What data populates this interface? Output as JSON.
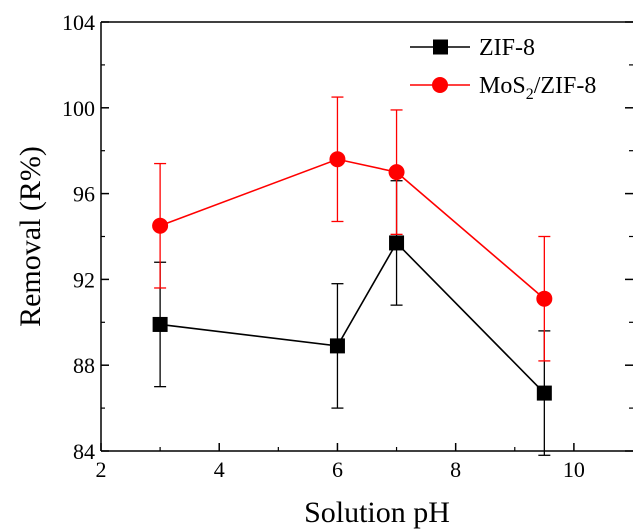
{
  "chart_data": {
    "type": "line",
    "xlabel": "Solution pH",
    "ylabel": "Removal (R%)",
    "xlim": [
      2,
      11
    ],
    "ylim": [
      84,
      104
    ],
    "xticks": [
      2,
      4,
      6,
      8,
      10
    ],
    "yticks": [
      84,
      88,
      92,
      96,
      100,
      104
    ],
    "legend_position": "top-right",
    "grid": false,
    "series": [
      {
        "name": "ZIF-8",
        "color": "#000000",
        "marker": "square",
        "x": [
          3,
          6,
          7,
          9.5
        ],
        "y": [
          89.9,
          88.9,
          93.7,
          86.7
        ],
        "error": [
          2.9,
          2.9,
          2.9,
          2.9
        ]
      },
      {
        "name": "MoS2/ZIF-8",
        "legend_parts": [
          "MoS",
          "2",
          "/ZIF-8"
        ],
        "color": "#ff0000",
        "marker": "circle",
        "x": [
          3,
          6,
          7,
          9.5
        ],
        "y": [
          94.5,
          97.6,
          97.0,
          91.1
        ],
        "error": [
          2.9,
          2.9,
          2.9,
          2.9
        ]
      }
    ]
  }
}
